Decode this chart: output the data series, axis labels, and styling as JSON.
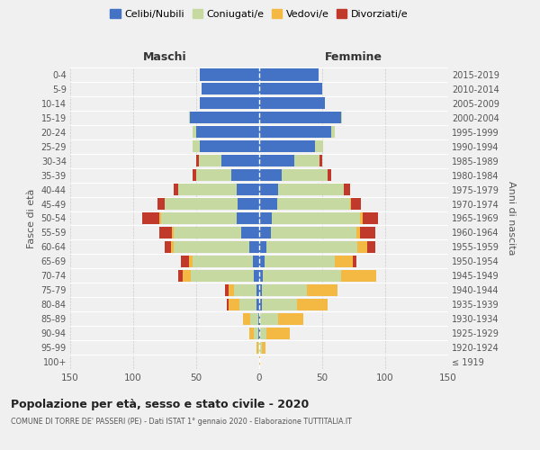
{
  "age_groups": [
    "100+",
    "95-99",
    "90-94",
    "85-89",
    "80-84",
    "75-79",
    "70-74",
    "65-69",
    "60-64",
    "55-59",
    "50-54",
    "45-49",
    "40-44",
    "35-39",
    "30-34",
    "25-29",
    "20-24",
    "15-19",
    "10-14",
    "5-9",
    "0-4"
  ],
  "birth_years": [
    "≤ 1919",
    "1920-1924",
    "1925-1929",
    "1930-1934",
    "1935-1939",
    "1940-1944",
    "1945-1949",
    "1950-1954",
    "1955-1959",
    "1960-1964",
    "1965-1969",
    "1970-1974",
    "1975-1979",
    "1980-1984",
    "1985-1989",
    "1990-1994",
    "1995-1999",
    "2000-2004",
    "2005-2009",
    "2010-2014",
    "2015-2019"
  ],
  "colors": {
    "celibe": "#4472C4",
    "coniugato": "#C5D9A0",
    "vedovo": "#F4B942",
    "divorziato": "#C0392B"
  },
  "males": {
    "celibe": [
      0,
      0,
      1,
      1,
      2,
      2,
      4,
      5,
      8,
      14,
      18,
      17,
      18,
      22,
      30,
      47,
      50,
      55,
      47,
      46,
      47
    ],
    "coniugato": [
      0,
      1,
      3,
      6,
      14,
      18,
      50,
      48,
      60,
      54,
      60,
      58,
      46,
      28,
      18,
      6,
      3,
      1,
      0,
      0,
      0
    ],
    "vedovo": [
      0,
      1,
      4,
      6,
      8,
      4,
      7,
      3,
      2,
      1,
      1,
      0,
      0,
      0,
      0,
      0,
      0,
      0,
      0,
      0,
      0
    ],
    "divorziato": [
      0,
      0,
      0,
      0,
      2,
      3,
      3,
      6,
      5,
      10,
      14,
      6,
      4,
      3,
      2,
      0,
      0,
      0,
      0,
      0,
      0
    ]
  },
  "females": {
    "nubile": [
      0,
      0,
      1,
      1,
      2,
      2,
      3,
      4,
      6,
      9,
      10,
      14,
      15,
      18,
      28,
      44,
      57,
      65,
      52,
      50,
      47
    ],
    "coniugata": [
      0,
      2,
      5,
      14,
      28,
      36,
      62,
      56,
      72,
      68,
      70,
      58,
      52,
      36,
      20,
      7,
      3,
      1,
      0,
      0,
      0
    ],
    "vedova": [
      1,
      3,
      18,
      20,
      24,
      24,
      28,
      14,
      8,
      3,
      2,
      1,
      0,
      0,
      0,
      0,
      0,
      0,
      0,
      0,
      0
    ],
    "divorziata": [
      0,
      0,
      0,
      0,
      0,
      0,
      0,
      3,
      6,
      12,
      12,
      8,
      5,
      3,
      2,
      0,
      0,
      0,
      0,
      0,
      0
    ]
  },
  "xlim": 150,
  "title": "Popolazione per età, sesso e stato civile - 2020",
  "subtitle": "COMUNE DI TORRE DE' PASSERI (PE) - Dati ISTAT 1° gennaio 2020 - Elaborazione TUTTITALIA.IT",
  "ylabel_left": "Fasce di età",
  "ylabel_right": "Anni di nascita",
  "xlabel_left": "Maschi",
  "xlabel_right": "Femmine",
  "bg_color": "#f0f0f0",
  "legend_labels": [
    "Celibi/Nubili",
    "Coniugati/e",
    "Vedovi/e",
    "Divorziati/e"
  ]
}
